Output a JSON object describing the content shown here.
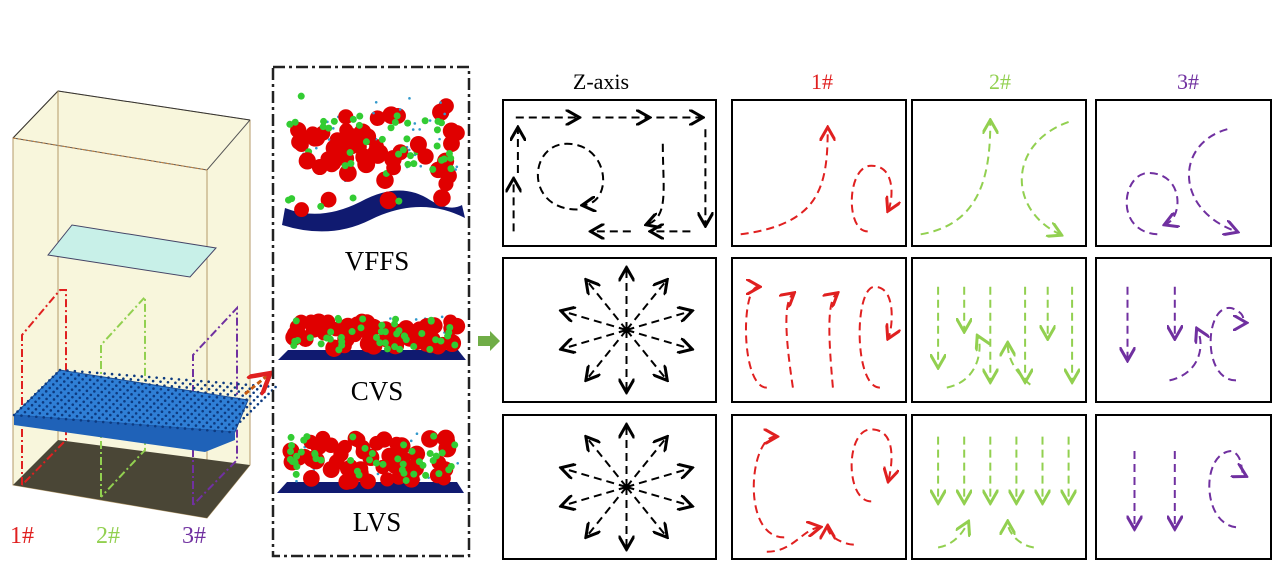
{
  "colors": {
    "pos1": "#e02020",
    "pos2": "#92d050",
    "pos3": "#7030a0",
    "zaxis": "#000000",
    "tray": "#2f7fd6",
    "pellet_red": "#e00000",
    "pellet_green": "#33cc33",
    "arrow_green": "#70ad47",
    "arrow_orange": "#c55a11"
  },
  "left_model": {
    "positions": [
      {
        "label": "1#"
      },
      {
        "label": "2#"
      },
      {
        "label": "3#"
      }
    ]
  },
  "states": [
    {
      "label": "VFFS"
    },
    {
      "label": "CVS"
    },
    {
      "label": "LVS"
    }
  ],
  "columns": [
    {
      "label": "Z-axis"
    },
    {
      "label": "1#"
    },
    {
      "label": "2#"
    },
    {
      "label": "3#"
    }
  ]
}
